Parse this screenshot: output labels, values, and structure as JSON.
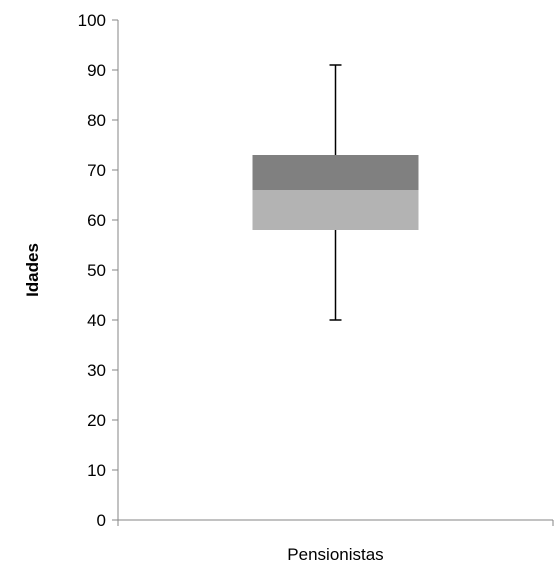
{
  "chart_data": {
    "type": "boxplot",
    "title": "",
    "xlabel": "",
    "ylabel": "Idades",
    "categories": [
      "Pensionistas"
    ],
    "ylim": [
      0,
      100
    ],
    "yticks": [
      0,
      10,
      20,
      30,
      40,
      50,
      60,
      70,
      80,
      90,
      100
    ],
    "ytick_labels": [
      "0",
      "10",
      "20",
      "30",
      "40",
      "50",
      "60",
      "70",
      "80",
      "90",
      "100"
    ],
    "grid": false,
    "legend": "none",
    "series": [
      {
        "min": 40,
        "q1": 58,
        "median": 66,
        "q3": 73,
        "max": 91
      }
    ],
    "colors": {
      "lower_box": "#b3b3b3",
      "upper_box": "#808080",
      "whisker": "#000000",
      "axis": "#868686"
    }
  }
}
